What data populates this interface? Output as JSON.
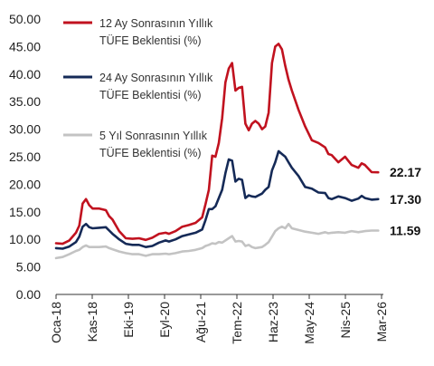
{
  "chart_data": {
    "type": "line",
    "title": "",
    "xlabel": "",
    "ylabel": "",
    "ylim": [
      0,
      50
    ],
    "y_ticks": [
      "0.00",
      "5.00",
      "10.00",
      "15.00",
      "20.00",
      "25.00",
      "30.00",
      "35.00",
      "40.00",
      "45.00",
      "50.00"
    ],
    "x_ticks": [
      "Oca-18",
      "Kas-18",
      "Eki-19",
      "Eyl-20",
      "Ağu-21",
      "Tem-22",
      "Haz-23",
      "May-24",
      "Nis-25",
      "Mar-26"
    ],
    "x_start": "2018-01",
    "x_end": "2026-03",
    "grid": false,
    "legend_position": "top-left",
    "series": [
      {
        "name": "12 Ay Sonrasının Yıllık TÜFE Beklentisi (%)",
        "color": "#c1121f",
        "end_label": "22.17",
        "points": [
          [
            "2018-01",
            9.3
          ],
          [
            "2018-03",
            9.2
          ],
          [
            "2018-05",
            9.8
          ],
          [
            "2018-07",
            11.2
          ],
          [
            "2018-08",
            12.5
          ],
          [
            "2018-09",
            16.5
          ],
          [
            "2018-10",
            17.3
          ],
          [
            "2018-11",
            16.2
          ],
          [
            "2018-12",
            15.6
          ],
          [
            "2019-02",
            15.6
          ],
          [
            "2019-04",
            15.3
          ],
          [
            "2019-05",
            14.2
          ],
          [
            "2019-06",
            13.6
          ],
          [
            "2019-08",
            11.5
          ],
          [
            "2019-10",
            10.2
          ],
          [
            "2019-12",
            10.1
          ],
          [
            "2020-02",
            10.2
          ],
          [
            "2020-04",
            9.9
          ],
          [
            "2020-06",
            10.3
          ],
          [
            "2020-08",
            11.0
          ],
          [
            "2020-10",
            11.2
          ],
          [
            "2020-11",
            11.0
          ],
          [
            "2021-01",
            11.5
          ],
          [
            "2021-03",
            12.3
          ],
          [
            "2021-05",
            12.6
          ],
          [
            "2021-07",
            13.0
          ],
          [
            "2021-09",
            14.0
          ],
          [
            "2021-10",
            16.4
          ],
          [
            "2021-11",
            19.0
          ],
          [
            "2021-12",
            25.2
          ],
          [
            "2022-01",
            25.0
          ],
          [
            "2022-02",
            27.5
          ],
          [
            "2022-03",
            32.0
          ],
          [
            "2022-04",
            38.5
          ],
          [
            "2022-05",
            41.0
          ],
          [
            "2022-06",
            42.0
          ],
          [
            "2022-07",
            37.0
          ],
          [
            "2022-08",
            37.5
          ],
          [
            "2022-09",
            37.7
          ],
          [
            "2022-10",
            31.0
          ],
          [
            "2022-11",
            29.8
          ],
          [
            "2022-12",
            31.0
          ],
          [
            "2023-01",
            31.5
          ],
          [
            "2023-02",
            31.0
          ],
          [
            "2023-03",
            30.0
          ],
          [
            "2023-04",
            30.5
          ],
          [
            "2023-05",
            33.0
          ],
          [
            "2023-06",
            42.0
          ],
          [
            "2023-07",
            45.0
          ],
          [
            "2023-08",
            45.5
          ],
          [
            "2023-09",
            44.5
          ],
          [
            "2023-10",
            41.5
          ],
          [
            "2023-11",
            39.0
          ],
          [
            "2023-12",
            37.0
          ],
          [
            "2024-02",
            33.5
          ],
          [
            "2024-04",
            30.5
          ],
          [
            "2024-06",
            28.0
          ],
          [
            "2024-08",
            27.5
          ],
          [
            "2024-10",
            26.7
          ],
          [
            "2024-11",
            25.5
          ],
          [
            "2024-12",
            25.3
          ],
          [
            "2025-02",
            24.0
          ],
          [
            "2025-04",
            25.0
          ],
          [
            "2025-06",
            23.5
          ],
          [
            "2025-08",
            23.0
          ],
          [
            "2025-09",
            23.8
          ],
          [
            "2025-10",
            23.5
          ],
          [
            "2025-12",
            22.2
          ],
          [
            "2026-02",
            22.17
          ]
        ]
      },
      {
        "name": "24 Ay Sonrasının Yıllık TÜFE Beklentisi (%)",
        "color": "#152a57",
        "end_label": "17.30",
        "points": [
          [
            "2018-01",
            8.4
          ],
          [
            "2018-03",
            8.3
          ],
          [
            "2018-05",
            8.7
          ],
          [
            "2018-07",
            9.5
          ],
          [
            "2018-08",
            10.5
          ],
          [
            "2018-09",
            12.3
          ],
          [
            "2018-10",
            12.8
          ],
          [
            "2018-11",
            12.2
          ],
          [
            "2018-12",
            12.0
          ],
          [
            "2019-02",
            12.1
          ],
          [
            "2019-04",
            12.2
          ],
          [
            "2019-05",
            11.6
          ],
          [
            "2019-06",
            11.0
          ],
          [
            "2019-08",
            10.0
          ],
          [
            "2019-10",
            9.2
          ],
          [
            "2019-12",
            9.0
          ],
          [
            "2020-02",
            9.0
          ],
          [
            "2020-04",
            8.6
          ],
          [
            "2020-06",
            8.8
          ],
          [
            "2020-08",
            9.4
          ],
          [
            "2020-10",
            9.8
          ],
          [
            "2020-11",
            9.6
          ],
          [
            "2021-01",
            10.0
          ],
          [
            "2021-03",
            10.6
          ],
          [
            "2021-05",
            10.9
          ],
          [
            "2021-07",
            11.2
          ],
          [
            "2021-09",
            11.8
          ],
          [
            "2021-10",
            13.5
          ],
          [
            "2021-11",
            15.5
          ],
          [
            "2021-12",
            15.5
          ],
          [
            "2022-01",
            16.0
          ],
          [
            "2022-02",
            17.5
          ],
          [
            "2022-03",
            19.0
          ],
          [
            "2022-04",
            22.0
          ],
          [
            "2022-05",
            24.5
          ],
          [
            "2022-06",
            24.3
          ],
          [
            "2022-07",
            20.5
          ],
          [
            "2022-08",
            21.0
          ],
          [
            "2022-09",
            20.8
          ],
          [
            "2022-10",
            17.5
          ],
          [
            "2022-11",
            18.0
          ],
          [
            "2022-12",
            17.8
          ],
          [
            "2023-01",
            17.7
          ],
          [
            "2023-02",
            18.0
          ],
          [
            "2023-03",
            18.3
          ],
          [
            "2023-04",
            19.0
          ],
          [
            "2023-05",
            19.5
          ],
          [
            "2023-06",
            22.5
          ],
          [
            "2023-07",
            24.0
          ],
          [
            "2023-08",
            26.0
          ],
          [
            "2023-09",
            25.5
          ],
          [
            "2023-10",
            25.0
          ],
          [
            "2023-11",
            24.0
          ],
          [
            "2023-12",
            23.0
          ],
          [
            "2024-02",
            21.5
          ],
          [
            "2024-04",
            19.5
          ],
          [
            "2024-06",
            19.2
          ],
          [
            "2024-08",
            18.5
          ],
          [
            "2024-10",
            18.4
          ],
          [
            "2024-11",
            17.5
          ],
          [
            "2024-12",
            17.3
          ],
          [
            "2025-02",
            17.8
          ],
          [
            "2025-04",
            17.5
          ],
          [
            "2025-06",
            17.0
          ],
          [
            "2025-08",
            17.4
          ],
          [
            "2025-09",
            17.9
          ],
          [
            "2025-10",
            17.5
          ],
          [
            "2025-12",
            17.2
          ],
          [
            "2026-02",
            17.3
          ]
        ]
      },
      {
        "name": "5 Yıl Sonrasının Yıllık TÜFE Beklentisi (%)",
        "color": "#c3c3c3",
        "end_label": "11.59",
        "points": [
          [
            "2018-01",
            6.6
          ],
          [
            "2018-03",
            6.8
          ],
          [
            "2018-05",
            7.3
          ],
          [
            "2018-07",
            7.9
          ],
          [
            "2018-08",
            8.1
          ],
          [
            "2018-09",
            8.6
          ],
          [
            "2018-10",
            8.9
          ],
          [
            "2018-11",
            8.6
          ],
          [
            "2018-12",
            8.6
          ],
          [
            "2019-02",
            8.6
          ],
          [
            "2019-04",
            8.7
          ],
          [
            "2019-05",
            8.4
          ],
          [
            "2019-06",
            8.2
          ],
          [
            "2019-08",
            7.8
          ],
          [
            "2019-10",
            7.5
          ],
          [
            "2019-12",
            7.3
          ],
          [
            "2020-02",
            7.3
          ],
          [
            "2020-04",
            7.0
          ],
          [
            "2020-06",
            7.3
          ],
          [
            "2020-08",
            7.3
          ],
          [
            "2020-10",
            7.4
          ],
          [
            "2020-11",
            7.3
          ],
          [
            "2021-01",
            7.5
          ],
          [
            "2021-03",
            7.8
          ],
          [
            "2021-05",
            7.9
          ],
          [
            "2021-07",
            8.1
          ],
          [
            "2021-09",
            8.4
          ],
          [
            "2021-10",
            8.8
          ],
          [
            "2021-11",
            9.0
          ],
          [
            "2021-12",
            9.3
          ],
          [
            "2022-01",
            9.2
          ],
          [
            "2022-02",
            9.5
          ],
          [
            "2022-03",
            9.4
          ],
          [
            "2022-04",
            9.8
          ],
          [
            "2022-05",
            10.2
          ],
          [
            "2022-06",
            10.6
          ],
          [
            "2022-07",
            9.6
          ],
          [
            "2022-08",
            9.7
          ],
          [
            "2022-09",
            9.6
          ],
          [
            "2022-10",
            8.8
          ],
          [
            "2022-11",
            9.0
          ],
          [
            "2022-12",
            8.6
          ],
          [
            "2023-01",
            8.4
          ],
          [
            "2023-02",
            8.5
          ],
          [
            "2023-03",
            8.6
          ],
          [
            "2023-04",
            9.0
          ],
          [
            "2023-05",
            9.5
          ],
          [
            "2023-06",
            10.5
          ],
          [
            "2023-07",
            11.5
          ],
          [
            "2023-08",
            12.0
          ],
          [
            "2023-09",
            12.3
          ],
          [
            "2023-10",
            12.0
          ],
          [
            "2023-11",
            12.8
          ],
          [
            "2023-12",
            12.0
          ],
          [
            "2024-02",
            11.7
          ],
          [
            "2024-04",
            11.4
          ],
          [
            "2024-06",
            11.2
          ],
          [
            "2024-08",
            11.0
          ],
          [
            "2024-10",
            11.3
          ],
          [
            "2024-11",
            11.1
          ],
          [
            "2024-12",
            11.2
          ],
          [
            "2025-02",
            11.3
          ],
          [
            "2025-04",
            11.2
          ],
          [
            "2025-06",
            11.5
          ],
          [
            "2025-08",
            11.3
          ],
          [
            "2025-09",
            11.4
          ],
          [
            "2025-10",
            11.5
          ],
          [
            "2025-12",
            11.6
          ],
          [
            "2026-02",
            11.59
          ]
        ]
      }
    ]
  }
}
